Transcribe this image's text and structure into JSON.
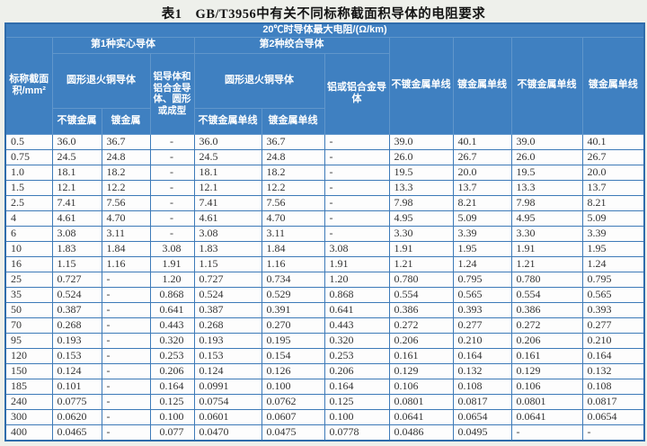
{
  "colors": {
    "page_bg": "#eef0eb",
    "header_bg": "#3f80c1",
    "header_text": "#ffffff",
    "header_border": "#6096cb",
    "grid": "#3d7ab8",
    "outer_border": "#2f6cab",
    "cell_bg": "#fdfdfd",
    "cell_text": "#333333"
  },
  "table": {
    "title": "表1　GB/T3956中有关不同标称截面积导体的电阻要求",
    "header": {
      "max_resistance": "20℃时导体最大电阻/(Ω/km)",
      "nominal_area": "标称截面积/mm²",
      "type1_solid": "第1种实心导体",
      "type2_stranded": "第2种绞合导体",
      "round_annealed_copper_1": "圆形退火铜导体",
      "aluminum_solid": "铝导体和铝合金导体、圆形或成型",
      "unplated": "不镀金属",
      "plated": "镀金属",
      "round_annealed_copper_2": "圆形退火铜导体",
      "unplated_single_wire_a": "不镀金属单线",
      "plated_single_wire_a": "镀金属单线",
      "aluminum_stranded": "铝或铝合金导体",
      "unplated_single_wire_b": "不镀金属单线",
      "plated_single_wire_b": "镀金属单线",
      "unplated_single_wire_c": "不镀金属单线",
      "plated_single_wire_c": "镀金属单线"
    },
    "rows": [
      [
        "0.5",
        "36.0",
        "36.7",
        "-",
        "36.0",
        "36.7",
        "-",
        "39.0",
        "40.1",
        "39.0",
        "40.1"
      ],
      [
        "0.75",
        "24.5",
        "24.8",
        "-",
        "24.5",
        "24.8",
        "-",
        "26.0",
        "26.7",
        "26.0",
        "26.7"
      ],
      [
        "1.0",
        "18.1",
        "18.2",
        "-",
        "18.1",
        "18.2",
        "-",
        "19.5",
        "20.0",
        "19.5",
        "20.0"
      ],
      [
        "1.5",
        "12.1",
        "12.2",
        "-",
        "12.1",
        "12.2",
        "-",
        "13.3",
        "13.7",
        "13.3",
        "13.7"
      ],
      [
        "2.5",
        "7.41",
        "7.56",
        "-",
        "7.41",
        "7.56",
        "-",
        "7.98",
        "8.21",
        "7.98",
        "8.21"
      ],
      [
        "4",
        "4.61",
        "4.70",
        "-",
        "4.61",
        "4.70",
        "-",
        "4.95",
        "5.09",
        "4.95",
        "5.09"
      ],
      [
        "6",
        "3.08",
        "3.11",
        "-",
        "3.08",
        "3.11",
        "-",
        "3.30",
        "3.39",
        "3.30",
        "3.39"
      ],
      [
        "10",
        "1.83",
        "1.84",
        "3.08",
        "1.83",
        "1.84",
        "3.08",
        "1.91",
        "1.95",
        "1.91",
        "1.95"
      ],
      [
        "16",
        "1.15",
        "1.16",
        "1.91",
        "1.15",
        "1.16",
        "1.91",
        "1.21",
        "1.24",
        "1.21",
        "1.24"
      ],
      [
        "25",
        "0.727",
        "-",
        "1.20",
        "0.727",
        "0.734",
        "1.20",
        "0.780",
        "0.795",
        "0.780",
        "0.795"
      ],
      [
        "35",
        "0.524",
        "-",
        "0.868",
        "0.524",
        "0.529",
        "0.868",
        "0.554",
        "0.565",
        "0.554",
        "0.565"
      ],
      [
        "50",
        "0.387",
        "-",
        "0.641",
        "0.387",
        "0.391",
        "0.641",
        "0.386",
        "0.393",
        "0.386",
        "0.393"
      ],
      [
        "70",
        "0.268",
        "-",
        "0.443",
        "0.268",
        "0.270",
        "0.443",
        "0.272",
        "0.277",
        "0.272",
        "0.277"
      ],
      [
        "95",
        "0.193",
        "-",
        "0.320",
        "0.193",
        "0.195",
        "0.320",
        "0.206",
        "0.210",
        "0.206",
        "0.210"
      ],
      [
        "120",
        "0.153",
        "-",
        "0.253",
        "0.153",
        "0.154",
        "0.253",
        "0.161",
        "0.164",
        "0.161",
        "0.164"
      ],
      [
        "150",
        "0.124",
        "-",
        "0.206",
        "0.124",
        "0.126",
        "0.206",
        "0.129",
        "0.132",
        "0.129",
        "0.132"
      ],
      [
        "185",
        "0.101",
        "-",
        "0.164",
        "0.0991",
        "0.100",
        "0.164",
        "0.106",
        "0.108",
        "0.106",
        "0.108"
      ],
      [
        "240",
        "0.0775",
        "-",
        "0.125",
        "0.0754",
        "0.0762",
        "0.125",
        "0.0801",
        "0.0817",
        "0.0801",
        "0.0817"
      ],
      [
        "300",
        "0.0620",
        "-",
        "0.100",
        "0.0601",
        "0.0607",
        "0.100",
        "0.0641",
        "0.0654",
        "0.0641",
        "0.0654"
      ],
      [
        "400",
        "0.0465",
        "-",
        "0.077",
        "0.0470",
        "0.0475",
        "0.0778",
        "0.0486",
        "0.0495",
        "-",
        "-"
      ]
    ]
  }
}
